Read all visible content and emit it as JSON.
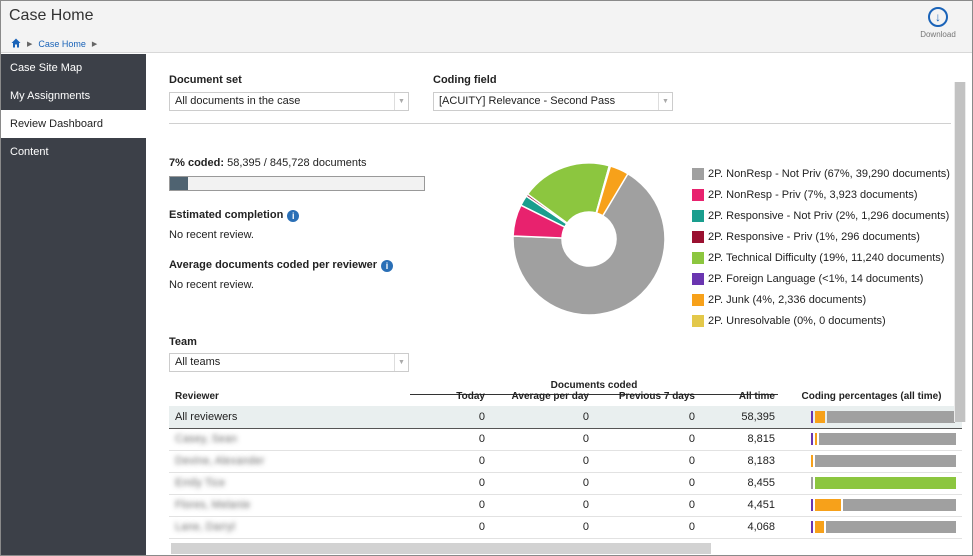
{
  "header": {
    "title": "Case Home",
    "breadcrumb": [
      "Case Home"
    ],
    "download_label": "Download"
  },
  "sidebar": {
    "items": [
      {
        "label": "Case Site Map",
        "active": false
      },
      {
        "label": "My Assignments",
        "active": false
      },
      {
        "label": "Review Dashboard",
        "active": true
      },
      {
        "label": "Content",
        "active": false
      }
    ]
  },
  "filters": {
    "document_set_label": "Document set",
    "document_set_value": "All documents in the case",
    "coding_field_label": "Coding field",
    "coding_field_value": "[ACUITY] Relevance - Second Pass",
    "team_label": "Team",
    "team_value": "All teams"
  },
  "summary": {
    "coded_pct_label": "7% coded:",
    "coded_counts": "58,395 / 845,728 documents",
    "progress_fraction": 0.07,
    "est_completion_label": "Estimated completion",
    "est_completion_value": "No recent review.",
    "avg_docs_label": "Average documents coded per reviewer",
    "avg_docs_value": "No recent review."
  },
  "chart_data": {
    "type": "pie",
    "categories": [
      "2P. NonResp - Not Priv (67%, 39,290 documents)",
      "2P. NonResp - Priv (7%, 3,923 documents)",
      "2P. Responsive - Not Priv (2%, 1,296 documents)",
      "2P. Responsive - Priv (1%, 296 documents)",
      "2P. Technical Difficulty (19%, 11,240 documents)",
      "2P. Foreign Language (<1%, 14 documents)",
      "2P. Junk (4%, 2,336 documents)",
      "2P. Unresolvable (0%, 0 documents)"
    ],
    "values": [
      39290,
      3923,
      1296,
      296,
      11240,
      14,
      2336,
      0
    ],
    "colors": [
      "#a0a0a0",
      "#e8226e",
      "#1a9e8e",
      "#9a1030",
      "#8cc63f",
      "#6a35b0",
      "#f7a11a",
      "#e3c84a"
    ]
  },
  "table": {
    "group_header": "Documents coded",
    "columns": [
      "Reviewer",
      "Today",
      "Average per day",
      "Previous 7 days",
      "All time",
      "Coding percentages (all time)"
    ],
    "rows": [
      {
        "reviewer": "All reviewers",
        "today": "0",
        "avg": "0",
        "prev7": "0",
        "all": "58,395",
        "blurred": false,
        "coverage": [
          {
            "color": "#6a35b0",
            "frac": 0.01
          },
          {
            "color": "#f7a11a",
            "frac": 0.07
          },
          {
            "color": "#a0a0a0",
            "frac": 0.88
          }
        ]
      },
      {
        "reviewer": "Casey, Sean",
        "today": "0",
        "avg": "0",
        "prev7": "0",
        "all": "8,815",
        "blurred": true,
        "coverage": [
          {
            "color": "#6a35b0",
            "frac": 0.01
          },
          {
            "color": "#f7a11a",
            "frac": 0.01
          },
          {
            "color": "#a0a0a0",
            "frac": 0.96
          }
        ]
      },
      {
        "reviewer": "Devine, Alexander",
        "today": "0",
        "avg": "0",
        "prev7": "0",
        "all": "8,183",
        "blurred": true,
        "coverage": [
          {
            "color": "#f7a11a",
            "frac": 0.01
          },
          {
            "color": "#a0a0a0",
            "frac": 0.97
          }
        ]
      },
      {
        "reviewer": "Emily Tice",
        "today": "0",
        "avg": "0",
        "prev7": "0",
        "all": "8,455",
        "blurred": true,
        "coverage": [
          {
            "color": "#a0a0a0",
            "frac": 0.01
          },
          {
            "color": "#8cc63f",
            "frac": 0.97
          }
        ]
      },
      {
        "reviewer": "Flores, Melanie",
        "today": "0",
        "avg": "0",
        "prev7": "0",
        "all": "4,451",
        "blurred": true,
        "coverage": [
          {
            "color": "#6a35b0",
            "frac": 0.01
          },
          {
            "color": "#f7a11a",
            "frac": 0.18
          },
          {
            "color": "#a0a0a0",
            "frac": 0.79
          }
        ]
      },
      {
        "reviewer": "Lane, Darryl",
        "today": "0",
        "avg": "0",
        "prev7": "0",
        "all": "4,068",
        "blurred": true,
        "coverage": [
          {
            "color": "#6a35b0",
            "frac": 0.01
          },
          {
            "color": "#f7a11a",
            "frac": 0.06
          },
          {
            "color": "#a0a0a0",
            "frac": 0.91
          }
        ]
      }
    ]
  }
}
